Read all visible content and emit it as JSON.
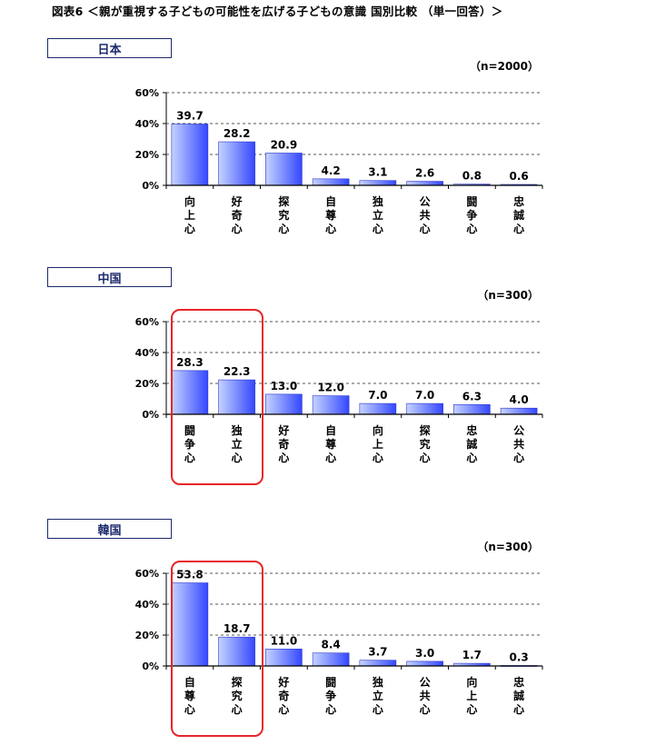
{
  "figure_title": "図表6 ＜親が重視する子どもの可能性を広げる子どもの意識 国別比較 （単一回答）＞",
  "colors": {
    "bar_light": "#c5d3ff",
    "bar_dark": "#3447ff",
    "highlight": "#e8252a",
    "label_box": "#1b2a6b"
  },
  "chart_data": [
    {
      "type": "bar",
      "country": "日本",
      "sample": "（n=2000）",
      "categories": [
        "向上心",
        "好奇心",
        "探究心",
        "自尊心",
        "独立心",
        "公共心",
        "闘争心",
        "忠誠心"
      ],
      "values": [
        39.7,
        28.2,
        20.9,
        4.2,
        3.1,
        2.6,
        0.8,
        0.6
      ],
      "value_labels": [
        "39.7",
        "28.2",
        "20.9",
        "4.2",
        "3.1",
        "2.6",
        "0.8",
        "0.6"
      ],
      "yticks": [
        "0%",
        "20%",
        "40%",
        "60%"
      ],
      "ylim": [
        0,
        60
      ],
      "grid": true,
      "highlighted_categories": []
    },
    {
      "type": "bar",
      "country": "中国",
      "sample": "（n=300）",
      "categories": [
        "闘争心",
        "独立心",
        "好奇心",
        "自尊心",
        "向上心",
        "探究心",
        "忠誠心",
        "公共心"
      ],
      "values": [
        28.3,
        22.3,
        13.0,
        12.0,
        7.0,
        7.0,
        6.3,
        4.0
      ],
      "value_labels": [
        "28.3",
        "22.3",
        "13.0",
        "12.0",
        "7.0",
        "7.0",
        "6.3",
        "4.0"
      ],
      "yticks": [
        "0%",
        "20%",
        "40%",
        "60%"
      ],
      "ylim": [
        0,
        60
      ],
      "grid": true,
      "highlighted_categories": [
        "闘争心",
        "独立心"
      ]
    },
    {
      "type": "bar",
      "country": "韓国",
      "sample": "（n=300）",
      "categories": [
        "自尊心",
        "探究心",
        "好奇心",
        "闘争心",
        "独立心",
        "公共心",
        "向上心",
        "忠誠心"
      ],
      "values": [
        53.8,
        18.7,
        11.0,
        8.4,
        3.7,
        3.0,
        1.7,
        0.3
      ],
      "value_labels": [
        "53.8",
        "18.7",
        "11.0",
        "8.4",
        "3.7",
        "3.0",
        "1.7",
        "0.3"
      ],
      "yticks": [
        "0%",
        "20%",
        "40%",
        "60%"
      ],
      "ylim": [
        0,
        60
      ],
      "grid": true,
      "highlighted_categories": [
        "自尊心",
        "探究心"
      ]
    }
  ]
}
